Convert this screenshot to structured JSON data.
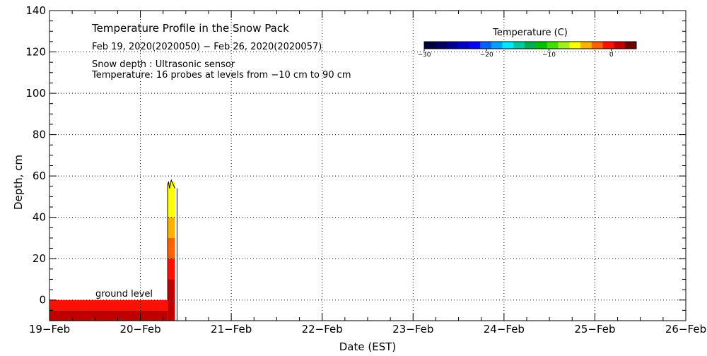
{
  "chart_data": {
    "type": "heatmap",
    "title": "Temperature Profile in the Snow Pack",
    "subtitle": "Feb 19, 2020(2020050) − Feb 26, 2020(2020057)",
    "notes": [
      "Snow depth : Ultrasonic sensor",
      "Temperature: 16 probes at levels from −10 cm to 90 cm"
    ],
    "xlabel": "Date (EST)",
    "ylabel": "Depth, cm",
    "x_ticks": [
      "19−Feb",
      "20−Feb",
      "21−Feb",
      "22−Feb",
      "23−Feb",
      "24−Feb",
      "25−Feb",
      "26−Feb"
    ],
    "x_range": [
      "2020-02-19",
      "2020-02-26"
    ],
    "y_ticks": [
      "0",
      "20",
      "40",
      "60",
      "80",
      "100",
      "120",
      "140"
    ],
    "ylim": [
      -10,
      140
    ],
    "grid": true,
    "annotation": "ground level",
    "colorbar": {
      "title": "Temperature (C)",
      "range": [
        -30,
        4
      ],
      "ticks": [
        "−30",
        "−20",
        "−10",
        "0"
      ],
      "colors": [
        "#00003a",
        "#000060",
        "#000090",
        "#0000c4",
        "#0000ff",
        "#0060ff",
        "#00a0ff",
        "#00e8ff",
        "#00c8a0",
        "#00b050",
        "#00c000",
        "#40e000",
        "#a0f020",
        "#ffff00",
        "#ffb000",
        "#ff6000",
        "#ff1000",
        "#c00000",
        "#700000"
      ]
    },
    "snow_depth": {
      "x_days": [
        1.3,
        1.31,
        1.32,
        1.33,
        1.34,
        1.35,
        1.36,
        1.37,
        1.38
      ],
      "depth_cm": [
        56,
        57,
        54,
        56,
        58,
        57,
        56,
        55,
        54
      ]
    },
    "temperature_cells": [
      {
        "x0": 0.0,
        "x1": 1.3,
        "y0": -10,
        "y1": -5,
        "temp_c": 0.5
      },
      {
        "x0": 0.0,
        "x1": 1.3,
        "y0": -5,
        "y1": 0,
        "temp_c": 0.0
      },
      {
        "x0": 1.3,
        "x1": 1.38,
        "y0": -10,
        "y1": 0,
        "temp_c": 1.0
      },
      {
        "x0": 1.3,
        "x1": 1.38,
        "y0": 0,
        "y1": 10,
        "temp_c": 1.5
      },
      {
        "x0": 1.3,
        "x1": 1.38,
        "y0": 10,
        "y1": 20,
        "temp_c": -0.5
      },
      {
        "x0": 1.3,
        "x1": 1.38,
        "y0": 20,
        "y1": 25,
        "temp_c": -1.5
      },
      {
        "x0": 1.3,
        "x1": 1.38,
        "y0": 25,
        "y1": 30,
        "temp_c": -3.0
      },
      {
        "x0": 1.3,
        "x1": 1.38,
        "y0": 30,
        "y1": 40,
        "temp_c": -4.5
      },
      {
        "x0": 1.3,
        "x1": 1.38,
        "y0": 40,
        "y1": 50,
        "temp_c": -5.5
      },
      {
        "x0": 1.3,
        "x1": 1.38,
        "y0": 50,
        "y1": 57,
        "temp_c": -6.5
      }
    ]
  }
}
